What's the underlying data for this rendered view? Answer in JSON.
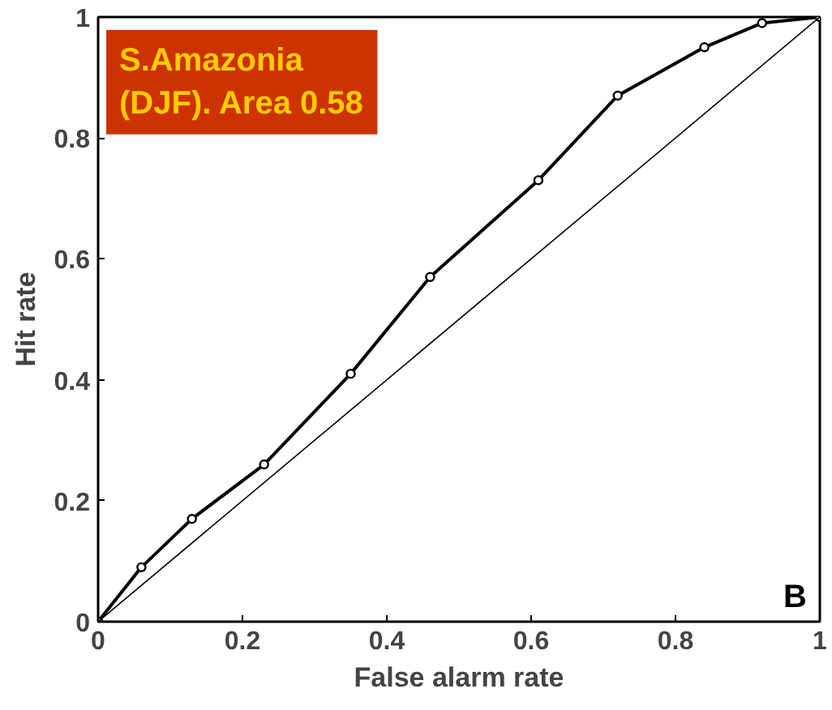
{
  "chart_data": {
    "type": "line",
    "xlabel": "False alarm rate",
    "ylabel": "Hit rate",
    "annotations": [
      "S.Amazonia\n(DJF). Area 0.58",
      "B"
    ],
    "series": [
      {
        "color": "#000000",
        "marker": "circle",
        "x": [
          0,
          0.06,
          0.13,
          0.23,
          0.35,
          0.46,
          0.61,
          0.72,
          0.84,
          0.92,
          1
        ],
        "values": [
          0,
          0.09,
          0.17,
          0.26,
          0.41,
          0.57,
          0.73,
          0.87,
          0.95,
          0.99,
          1
        ]
      },
      {
        "color": "#000000",
        "marker": "none",
        "x": [
          0,
          1
        ],
        "values": [
          0,
          1
        ]
      }
    ],
    "xlim": [
      0,
      1
    ],
    "ylim": [
      0,
      1
    ],
    "xticks": [
      0,
      0.2,
      0.4,
      0.6,
      0.8,
      1
    ],
    "yticks": [
      0,
      0.2,
      0.4,
      0.6,
      0.8,
      1
    ],
    "grid": false
  }
}
